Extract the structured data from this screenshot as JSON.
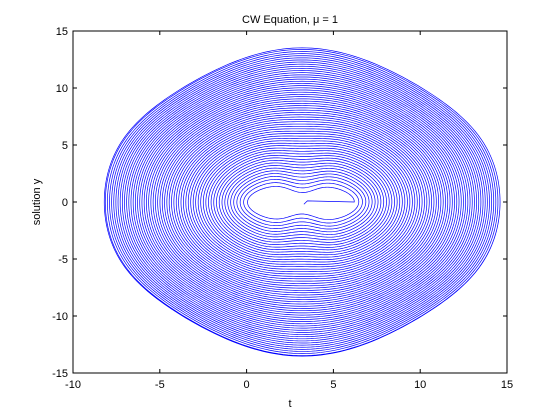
{
  "chart_data": {
    "type": "line",
    "title": "CW Equation, μ = 1",
    "xlabel": "t",
    "ylabel": "solution y",
    "xlim": [
      -10,
      15
    ],
    "ylim": [
      -15,
      15
    ],
    "xticks": [
      -10,
      -5,
      0,
      5,
      10,
      15
    ],
    "yticks": [
      -15,
      -10,
      -5,
      0,
      5,
      10,
      15
    ],
    "xtick_labels": [
      "-10",
      "-5",
      "0",
      "5",
      "10",
      "15"
    ],
    "ytick_labels": [
      "-15",
      "-10",
      "-5",
      "0",
      "5",
      "10",
      "15"
    ],
    "grid": false,
    "legend": "none",
    "series": [
      {
        "color": "#0000ff",
        "center": [
          3.2,
          0
        ],
        "spiral_start_radius": 1.5,
        "outer_x_extent": [
          -8.2,
          14.6
        ],
        "outer_y_extent": [
          -13.0,
          13.0
        ],
        "inner_hole_x_extent": [
          0.2,
          6.2
        ],
        "inner_hole_y_extent": [
          -1.5,
          1.5
        ],
        "loops": 60
      }
    ]
  }
}
